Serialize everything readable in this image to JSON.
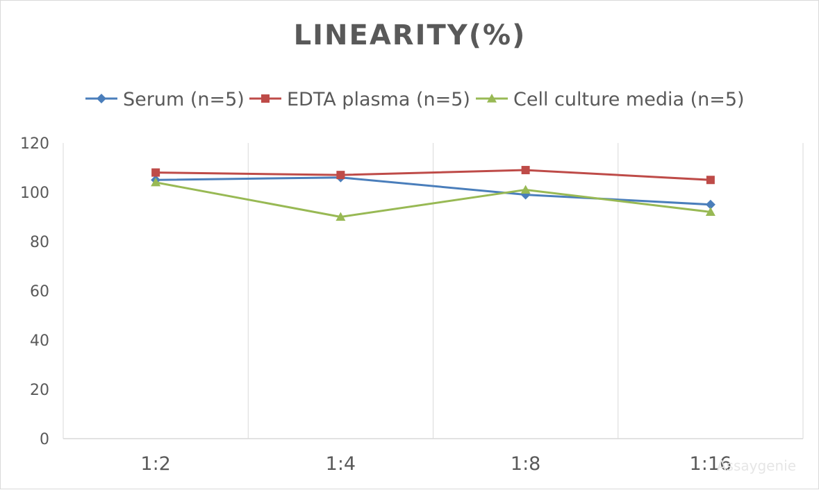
{
  "chart_data": {
    "type": "line",
    "title": "LINEARITY(%)",
    "xlabel": "",
    "ylabel": "",
    "categories": [
      "1:2",
      "1:4",
      "1:8",
      "1:16"
    ],
    "ylim": [
      0,
      120
    ],
    "yticks": [
      0,
      20,
      40,
      60,
      80,
      100,
      120
    ],
    "grid": "vertical",
    "legend_position": "top",
    "series": [
      {
        "name": "Serum (n=5)",
        "values": [
          105,
          106,
          99,
          95
        ],
        "color": "#4a7ebb",
        "marker": "diamond"
      },
      {
        "name": "EDTA plasma (n=5)",
        "values": [
          108,
          107,
          109,
          105
        ],
        "color": "#be4b48",
        "marker": "square"
      },
      {
        "name": "Cell culture media (n=5)",
        "values": [
          104,
          90,
          101,
          92
        ],
        "color": "#98b954",
        "marker": "triangle"
      }
    ]
  },
  "watermark": "Assaygenie"
}
